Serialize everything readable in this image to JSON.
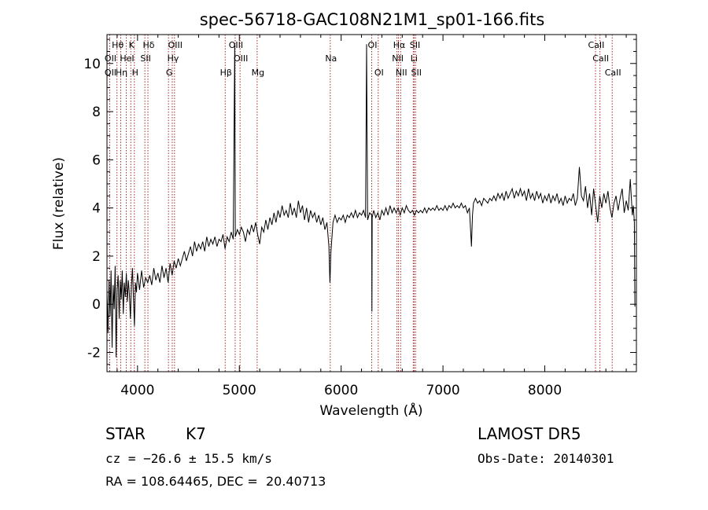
{
  "chart_data": {
    "type": "line",
    "title": "spec-56718-GAC108N21M1_sp01-166.fits",
    "xlabel": "Wavelength (Å)",
    "ylabel": "Flux (relative)",
    "xlim": [
      3700,
      8900
    ],
    "ylim": [
      -2.8,
      11.2
    ],
    "xticks": [
      4000,
      5000,
      6000,
      7000,
      8000
    ],
    "yticks": [
      -2,
      0,
      2,
      4,
      6,
      8,
      10
    ],
    "grid": false,
    "line_color": "#000000",
    "marker_color": "#a52a2a",
    "series": [
      {
        "points": [
          [
            3700,
            0.5
          ],
          [
            3710,
            -1.2
          ],
          [
            3720,
            1.0
          ],
          [
            3730,
            -0.5
          ],
          [
            3740,
            1.4
          ],
          [
            3750,
            -1.8
          ],
          [
            3760,
            0.8
          ],
          [
            3770,
            -0.2
          ],
          [
            3780,
            1.6
          ],
          [
            3790,
            -2.2
          ],
          [
            3800,
            0.6
          ],
          [
            3810,
            1.2
          ],
          [
            3820,
            -0.6
          ],
          [
            3830,
            1.0
          ],
          [
            3840,
            0.2
          ],
          [
            3850,
            1.4
          ],
          [
            3860,
            -0.4
          ],
          [
            3870,
            0.9
          ],
          [
            3880,
            0.3
          ],
          [
            3890,
            1.3
          ],
          [
            3900,
            0.1
          ],
          [
            3910,
            1.0
          ],
          [
            3920,
            0.4
          ],
          [
            3930,
            -0.6
          ],
          [
            3940,
            0.8
          ],
          [
            3950,
            1.5
          ],
          [
            3960,
            0.2
          ],
          [
            3970,
            -0.9
          ],
          [
            3980,
            0.9
          ],
          [
            3990,
            0.5
          ],
          [
            4000,
            1.3
          ],
          [
            4020,
            0.6
          ],
          [
            4040,
            1.4
          ],
          [
            4060,
            0.7
          ],
          [
            4080,
            1.1
          ],
          [
            4100,
            0.9
          ],
          [
            4120,
            1.2
          ],
          [
            4140,
            0.8
          ],
          [
            4160,
            1.5
          ],
          [
            4180,
            1.0
          ],
          [
            4200,
            1.3
          ],
          [
            4220,
            0.9
          ],
          [
            4240,
            1.6
          ],
          [
            4260,
            1.1
          ],
          [
            4280,
            1.5
          ],
          [
            4300,
            0.9
          ],
          [
            4320,
            1.7
          ],
          [
            4340,
            1.2
          ],
          [
            4360,
            1.8
          ],
          [
            4380,
            1.5
          ],
          [
            4400,
            1.9
          ],
          [
            4420,
            1.6
          ],
          [
            4440,
            1.9
          ],
          [
            4460,
            2.2
          ],
          [
            4480,
            1.8
          ],
          [
            4500,
            2.1
          ],
          [
            4520,
            2.4
          ],
          [
            4540,
            2.0
          ],
          [
            4560,
            2.6
          ],
          [
            4580,
            2.2
          ],
          [
            4600,
            2.5
          ],
          [
            4620,
            2.3
          ],
          [
            4640,
            2.6
          ],
          [
            4660,
            2.2
          ],
          [
            4680,
            2.8
          ],
          [
            4700,
            2.4
          ],
          [
            4720,
            2.7
          ],
          [
            4740,
            2.5
          ],
          [
            4760,
            2.8
          ],
          [
            4780,
            2.4
          ],
          [
            4800,
            2.7
          ],
          [
            4820,
            2.6
          ],
          [
            4840,
            2.9
          ],
          [
            4860,
            2.3
          ],
          [
            4880,
            2.8
          ],
          [
            4900,
            2.6
          ],
          [
            4920,
            3.0
          ],
          [
            4940,
            2.7
          ],
          [
            4955,
            10.8
          ],
          [
            4960,
            2.8
          ],
          [
            4980,
            3.1
          ],
          [
            5000,
            2.9
          ],
          [
            5020,
            3.2
          ],
          [
            5040,
            3.0
          ],
          [
            5060,
            2.6
          ],
          [
            5080,
            3.1
          ],
          [
            5100,
            2.9
          ],
          [
            5120,
            3.3
          ],
          [
            5140,
            3.0
          ],
          [
            5160,
            3.4
          ],
          [
            5180,
            2.9
          ],
          [
            5200,
            2.5
          ],
          [
            5220,
            3.2
          ],
          [
            5240,
            3.0
          ],
          [
            5260,
            3.5
          ],
          [
            5280,
            3.1
          ],
          [
            5300,
            3.6
          ],
          [
            5320,
            3.3
          ],
          [
            5340,
            3.8
          ],
          [
            5360,
            3.4
          ],
          [
            5380,
            3.9
          ],
          [
            5400,
            3.6
          ],
          [
            5420,
            4.1
          ],
          [
            5440,
            3.7
          ],
          [
            5460,
            3.9
          ],
          [
            5480,
            3.6
          ],
          [
            5500,
            4.2
          ],
          [
            5520,
            3.7
          ],
          [
            5540,
            4.0
          ],
          [
            5560,
            3.6
          ],
          [
            5580,
            4.3
          ],
          [
            5600,
            3.8
          ],
          [
            5620,
            4.1
          ],
          [
            5640,
            3.5
          ],
          [
            5660,
            4.0
          ],
          [
            5680,
            3.4
          ],
          [
            5700,
            3.9
          ],
          [
            5720,
            3.6
          ],
          [
            5740,
            3.8
          ],
          [
            5760,
            3.4
          ],
          [
            5780,
            3.7
          ],
          [
            5800,
            3.3
          ],
          [
            5820,
            3.6
          ],
          [
            5840,
            3.1
          ],
          [
            5860,
            3.4
          ],
          [
            5880,
            2.4
          ],
          [
            5890,
            0.9
          ],
          [
            5900,
            2.2
          ],
          [
            5920,
            3.4
          ],
          [
            5940,
            3.7
          ],
          [
            5960,
            3.4
          ],
          [
            5980,
            3.6
          ],
          [
            6000,
            3.5
          ],
          [
            6020,
            3.7
          ],
          [
            6040,
            3.4
          ],
          [
            6060,
            3.7
          ],
          [
            6080,
            3.6
          ],
          [
            6100,
            3.8
          ],
          [
            6120,
            3.6
          ],
          [
            6140,
            3.9
          ],
          [
            6160,
            3.6
          ],
          [
            6180,
            3.8
          ],
          [
            6200,
            3.7
          ],
          [
            6220,
            3.9
          ],
          [
            6240,
            3.6
          ],
          [
            6250,
            10.8
          ],
          [
            6260,
            3.5
          ],
          [
            6280,
            3.8
          ],
          [
            6300,
            3.7
          ],
          [
            6302,
            -0.3
          ],
          [
            6305,
            3.6
          ],
          [
            6320,
            3.9
          ],
          [
            6340,
            3.6
          ],
          [
            6360,
            3.8
          ],
          [
            6380,
            3.5
          ],
          [
            6400,
            3.9
          ],
          [
            6420,
            3.7
          ],
          [
            6440,
            4.0
          ],
          [
            6460,
            3.7
          ],
          [
            6480,
            4.1
          ],
          [
            6500,
            3.8
          ],
          [
            6520,
            4.0
          ],
          [
            6540,
            3.8
          ],
          [
            6560,
            4.0
          ],
          [
            6580,
            3.7
          ],
          [
            6600,
            4.0
          ],
          [
            6620,
            3.8
          ],
          [
            6640,
            4.1
          ],
          [
            6660,
            3.9
          ],
          [
            6680,
            3.8
          ],
          [
            6700,
            3.9
          ],
          [
            6720,
            3.7
          ],
          [
            6740,
            3.9
          ],
          [
            6760,
            3.8
          ],
          [
            6780,
            3.9
          ],
          [
            6800,
            3.8
          ],
          [
            6820,
            4.0
          ],
          [
            6840,
            3.8
          ],
          [
            6860,
            4.0
          ],
          [
            6880,
            3.9
          ],
          [
            6900,
            4.0
          ],
          [
            6920,
            3.9
          ],
          [
            6940,
            4.1
          ],
          [
            6960,
            3.9
          ],
          [
            6980,
            4.0
          ],
          [
            7000,
            3.9
          ],
          [
            7020,
            4.1
          ],
          [
            7040,
            3.9
          ],
          [
            7060,
            4.1
          ],
          [
            7080,
            4.0
          ],
          [
            7100,
            4.2
          ],
          [
            7120,
            4.0
          ],
          [
            7140,
            4.1
          ],
          [
            7160,
            4.0
          ],
          [
            7180,
            4.2
          ],
          [
            7200,
            4.0
          ],
          [
            7220,
            4.1
          ],
          [
            7240,
            3.8
          ],
          [
            7260,
            4.0
          ],
          [
            7280,
            2.4
          ],
          [
            7290,
            3.7
          ],
          [
            7300,
            4.2
          ],
          [
            7320,
            4.4
          ],
          [
            7340,
            4.2
          ],
          [
            7360,
            4.3
          ],
          [
            7380,
            4.1
          ],
          [
            7400,
            4.4
          ],
          [
            7420,
            4.3
          ],
          [
            7440,
            4.2
          ],
          [
            7460,
            4.4
          ],
          [
            7480,
            4.3
          ],
          [
            7500,
            4.5
          ],
          [
            7520,
            4.3
          ],
          [
            7540,
            4.6
          ],
          [
            7560,
            4.4
          ],
          [
            7580,
            4.6
          ],
          [
            7600,
            4.3
          ],
          [
            7620,
            4.7
          ],
          [
            7640,
            4.4
          ],
          [
            7660,
            4.6
          ],
          [
            7680,
            4.8
          ],
          [
            7700,
            4.4
          ],
          [
            7720,
            4.7
          ],
          [
            7740,
            4.5
          ],
          [
            7760,
            4.8
          ],
          [
            7780,
            4.5
          ],
          [
            7800,
            4.7
          ],
          [
            7820,
            4.3
          ],
          [
            7840,
            4.8
          ],
          [
            7860,
            4.4
          ],
          [
            7880,
            4.6
          ],
          [
            7900,
            4.3
          ],
          [
            7920,
            4.7
          ],
          [
            7940,
            4.4
          ],
          [
            7960,
            4.6
          ],
          [
            7980,
            4.2
          ],
          [
            8000,
            4.5
          ],
          [
            8020,
            4.3
          ],
          [
            8040,
            4.6
          ],
          [
            8060,
            4.2
          ],
          [
            8080,
            4.5
          ],
          [
            8100,
            4.3
          ],
          [
            8120,
            4.6
          ],
          [
            8140,
            4.2
          ],
          [
            8160,
            4.4
          ],
          [
            8180,
            4.1
          ],
          [
            8200,
            4.5
          ],
          [
            8220,
            4.2
          ],
          [
            8240,
            4.4
          ],
          [
            8260,
            4.3
          ],
          [
            8280,
            4.6
          ],
          [
            8300,
            4.1
          ],
          [
            8320,
            4.4
          ],
          [
            8340,
            5.7
          ],
          [
            8360,
            4.5
          ],
          [
            8380,
            4.3
          ],
          [
            8400,
            4.9
          ],
          [
            8420,
            4.0
          ],
          [
            8440,
            4.6
          ],
          [
            8460,
            3.7
          ],
          [
            8480,
            4.8
          ],
          [
            8500,
            4.1
          ],
          [
            8520,
            3.4
          ],
          [
            8540,
            4.5
          ],
          [
            8560,
            4.0
          ],
          [
            8580,
            4.6
          ],
          [
            8600,
            4.2
          ],
          [
            8620,
            4.7
          ],
          [
            8640,
            4.0
          ],
          [
            8660,
            3.6
          ],
          [
            8680,
            4.2
          ],
          [
            8700,
            4.5
          ],
          [
            8720,
            3.9
          ],
          [
            8740,
            4.4
          ],
          [
            8760,
            4.8
          ],
          [
            8780,
            3.8
          ],
          [
            8800,
            4.3
          ],
          [
            8820,
            3.9
          ],
          [
            8840,
            5.2
          ],
          [
            8860,
            3.7
          ],
          [
            8870,
            4.1
          ],
          [
            8880,
            3.4
          ],
          [
            8885,
            -0.1
          ]
        ]
      }
    ],
    "lines": [
      {
        "label": "Hθ",
        "x": 3798,
        "row": 0
      },
      {
        "label": "OII",
        "x": 3727,
        "row": 1
      },
      {
        "label": "OII",
        "x": 3727,
        "row": 2
      },
      {
        "label": "Hη",
        "x": 3835,
        "row": 2
      },
      {
        "label": "K",
        "x": 3934,
        "row": 0
      },
      {
        "label": "HeI",
        "x": 3889,
        "row": 1
      },
      {
        "label": "H",
        "x": 3969,
        "row": 2
      },
      {
        "label": "Hδ",
        "x": 4102,
        "row": 0
      },
      {
        "label": "SII",
        "x": 4072,
        "row": 1
      },
      {
        "label": "OIII",
        "x": 4363,
        "row": 0
      },
      {
        "label": "Hγ",
        "x": 4341,
        "row": 1
      },
      {
        "label": "G",
        "x": 4304,
        "row": 2
      },
      {
        "label": "OIII",
        "x": 4959,
        "row": 0
      },
      {
        "label": "OIII",
        "x": 5007,
        "row": 1
      },
      {
        "label": "Hβ",
        "x": 4861,
        "row": 2
      },
      {
        "label": "Mg",
        "x": 5175,
        "row": 2
      },
      {
        "label": "Na",
        "x": 5893,
        "row": 1
      },
      {
        "label": "OI",
        "x": 6300,
        "row": 0
      },
      {
        "label": "OI",
        "x": 6364,
        "row": 2
      },
      {
        "label": "Hα",
        "x": 6563,
        "row": 0
      },
      {
        "label": "SII",
        "x": 6717,
        "row": 0
      },
      {
        "label": "NII",
        "x": 6548,
        "row": 1
      },
      {
        "label": "Li",
        "x": 6708,
        "row": 1
      },
      {
        "label": "NII",
        "x": 6584,
        "row": 2
      },
      {
        "label": "SII",
        "x": 6731,
        "row": 2
      },
      {
        "label": "CaII",
        "x": 8498,
        "row": 0
      },
      {
        "label": "CaII",
        "x": 8542,
        "row": 1
      },
      {
        "label": "CaII",
        "x": 8662,
        "row": 2
      }
    ]
  },
  "info": {
    "class_label": "STAR",
    "subclass": "K7",
    "cz": "cz = −26.6 ± 15.5 km/s",
    "radec": "RA = 108.64465, DEC =  20.40713",
    "survey": "LAMOST DR5",
    "obs_date": "Obs-Date: 20140301"
  }
}
